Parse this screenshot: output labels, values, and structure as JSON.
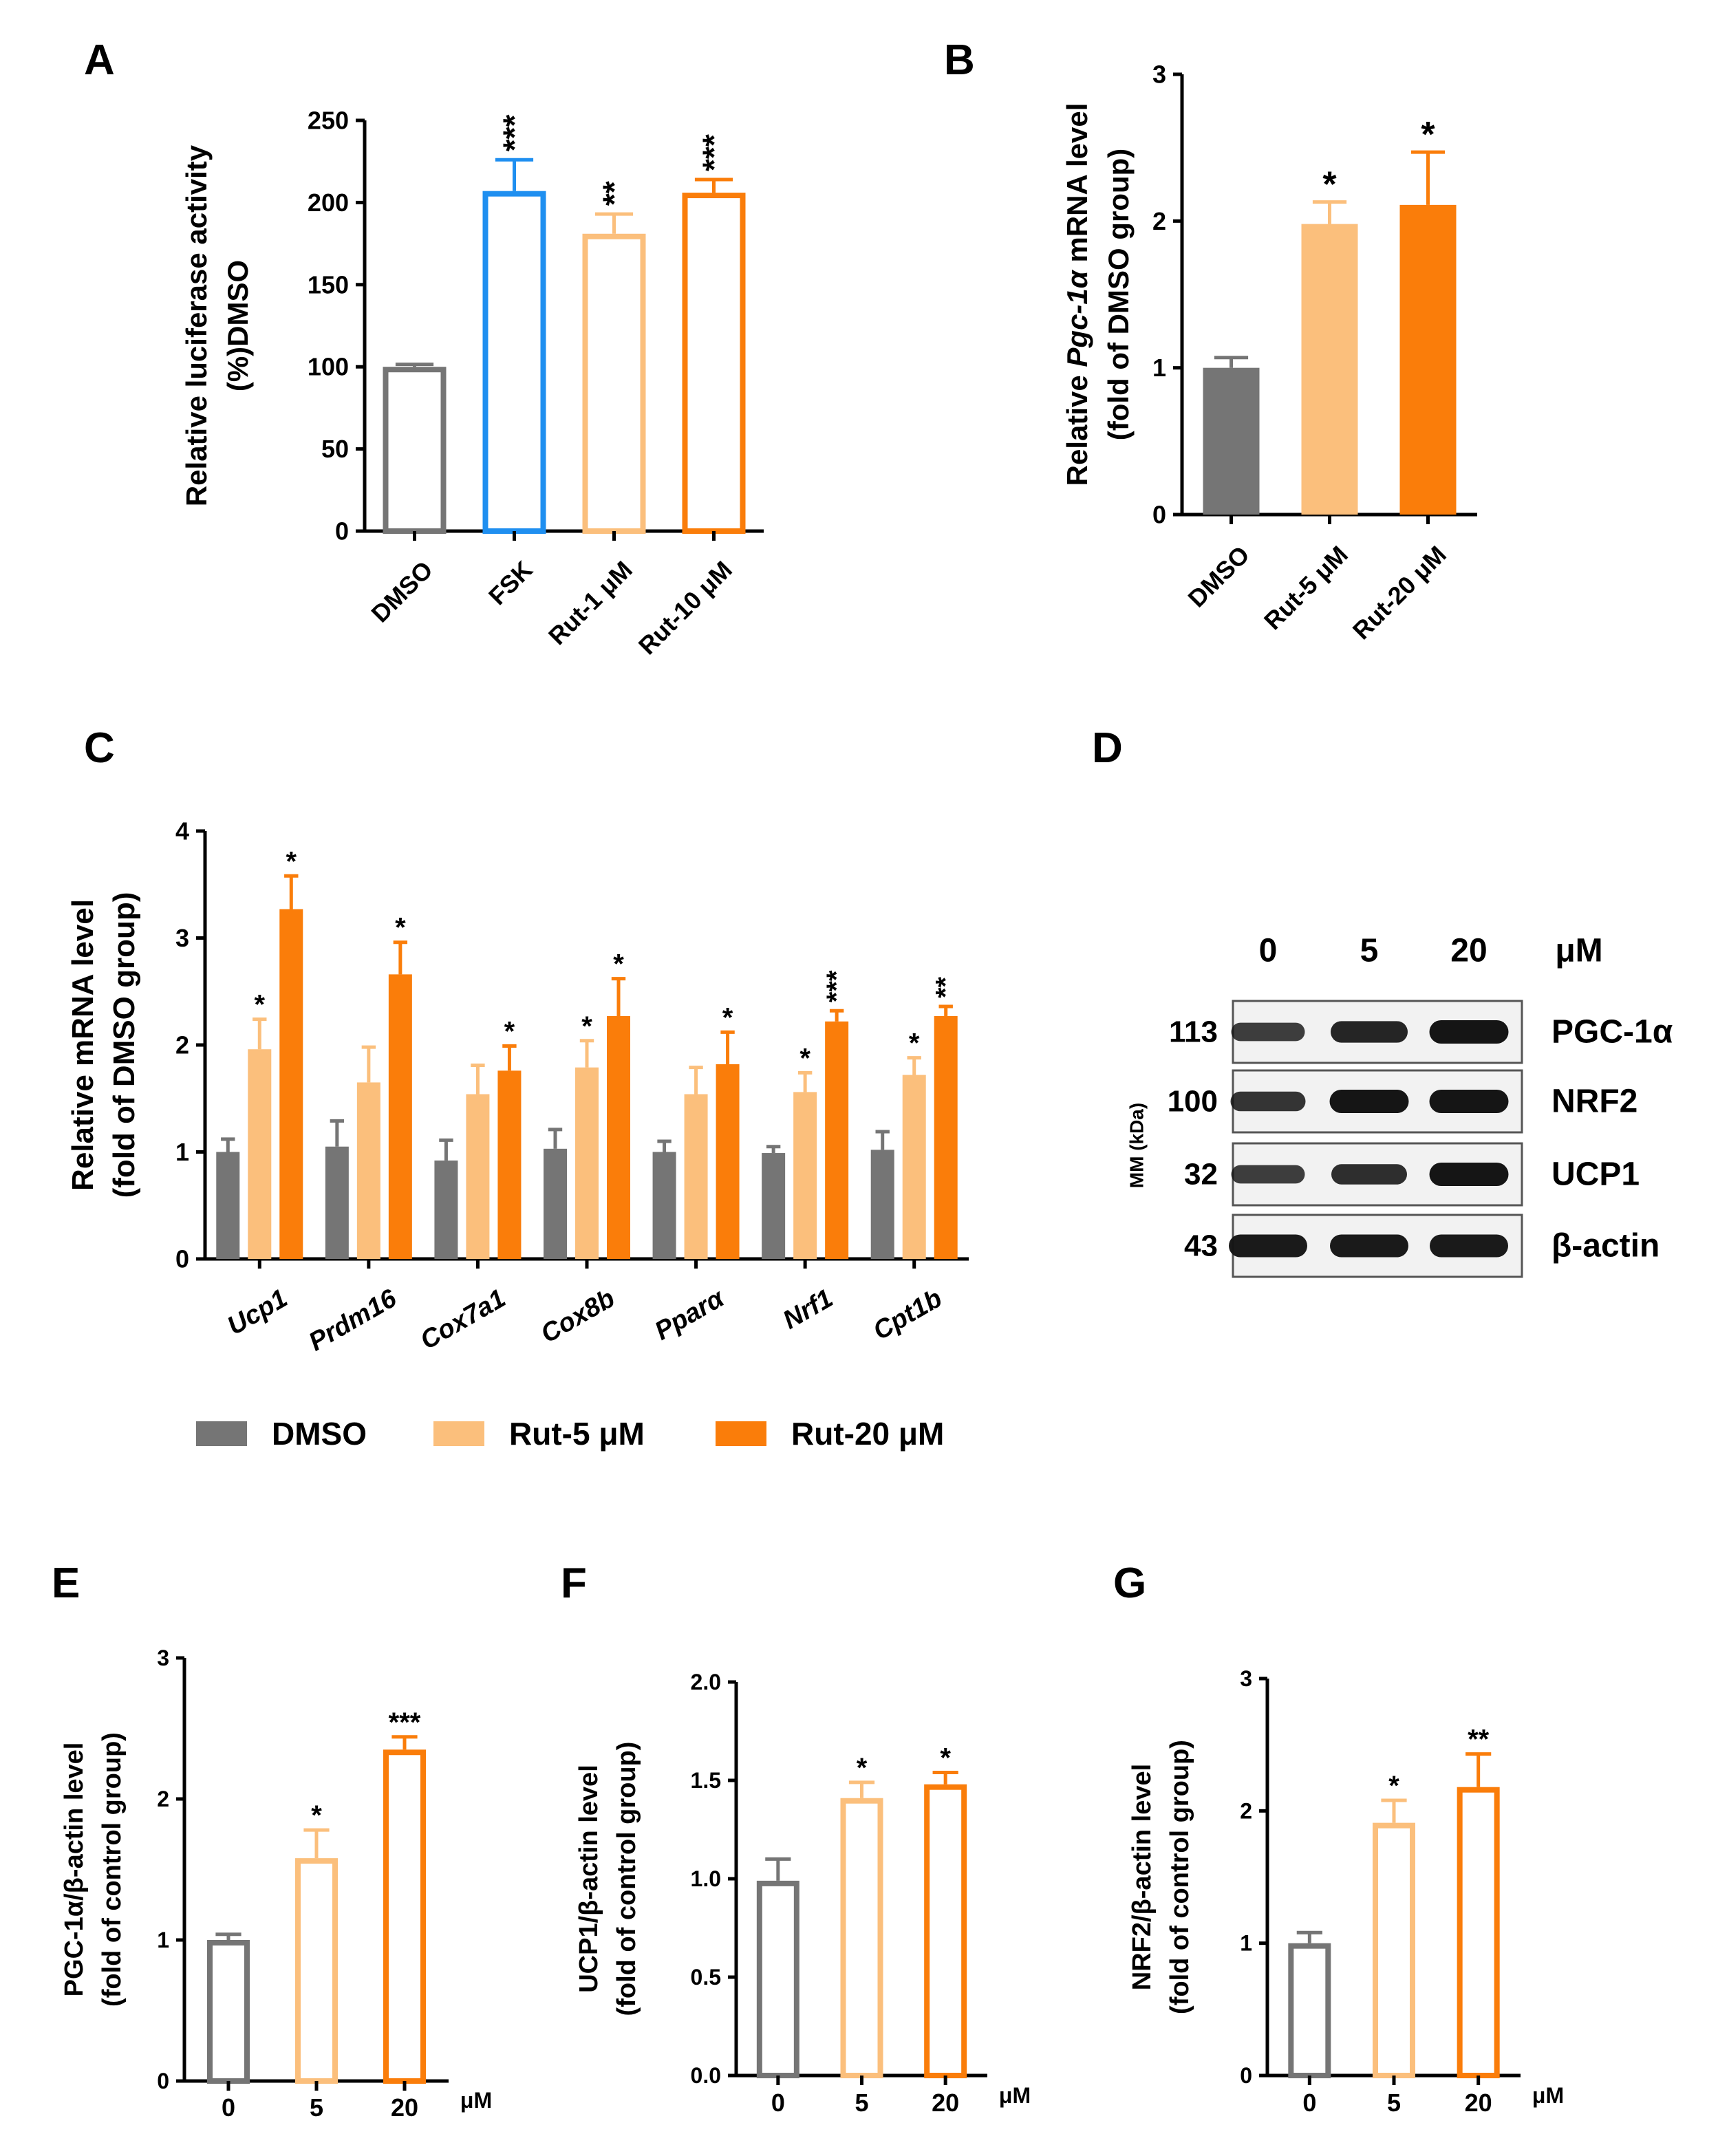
{
  "colors": {
    "dmso": "#757575",
    "fsk": "#1f8ff0",
    "rut_light": "#fbbf7c",
    "rut_dark": "#fa7d0a",
    "axis": "#000000",
    "gel_bg": "#f2f2f2",
    "band": "#151515"
  },
  "chart_data": [
    {
      "panel": "A",
      "type": "bar",
      "style": "outline",
      "categories": [
        "DMSO",
        "FSK",
        "Rut-1 μM",
        "Rut-10 μM"
      ],
      "values": [
        100,
        207,
        181,
        206
      ],
      "errors": [
        1.5,
        19,
        12,
        8
      ],
      "significance": [
        "",
        "***",
        "**",
        "***"
      ],
      "bar_colors": [
        "#757575",
        "#1f8ff0",
        "#fbbf7c",
        "#fa7d0a"
      ],
      "ylabel_lines": [
        "Relative luciferase activity",
        "(%)DMSO"
      ],
      "ylim": [
        0,
        250
      ],
      "yticks": [
        0,
        50,
        100,
        150,
        200,
        250
      ],
      "ytick_labels": [
        "0",
        "50",
        "100",
        "150",
        "200",
        "250"
      ]
    },
    {
      "panel": "B",
      "type": "bar",
      "style": "filled",
      "categories": [
        "DMSO",
        "Rut-5 μM",
        "Rut-20 μM"
      ],
      "values": [
        1.0,
        1.98,
        2.11
      ],
      "errors": [
        0.07,
        0.15,
        0.36
      ],
      "significance": [
        "",
        "*",
        "*"
      ],
      "bar_colors": [
        "#757575",
        "#fbbf7c",
        "#fa7d0a"
      ],
      "ylabel_lines": [
        [
          {
            "t": "Relative "
          },
          {
            "t": "Pgc-1",
            "i": true
          },
          {
            "t": "α",
            "i": true
          },
          {
            "t": " mRNA level"
          }
        ],
        [
          {
            "t": "(fold of DMSO group)"
          }
        ]
      ],
      "ylim": [
        0,
        3
      ],
      "yticks": [
        0,
        1,
        2,
        3
      ],
      "ytick_labels": [
        "0",
        "1",
        "2",
        "3"
      ]
    },
    {
      "panel": "C",
      "type": "bar",
      "style": "filled",
      "categories": [
        "Ucp1",
        "Prdm16",
        "Cox7a1",
        "Cox8b",
        "Pparα",
        "Nrf1",
        "Cpt1b"
      ],
      "series": [
        {
          "name": "DMSO",
          "color": "#757575",
          "values": [
            1.0,
            1.05,
            0.92,
            1.03,
            1.0,
            0.99,
            1.02
          ],
          "errors": [
            0.12,
            0.24,
            0.19,
            0.18,
            0.1,
            0.06,
            0.17
          ],
          "significance": [
            "",
            "",
            "",
            "",
            "",
            "",
            ""
          ]
        },
        {
          "name": "Rut-5 μM",
          "color": "#fbbf7c",
          "values": [
            1.96,
            1.65,
            1.54,
            1.79,
            1.54,
            1.56,
            1.72
          ],
          "errors": [
            0.28,
            0.33,
            0.27,
            0.25,
            0.25,
            0.18,
            0.16
          ],
          "significance": [
            "*",
            "",
            "",
            "*",
            "",
            "*",
            "*"
          ]
        },
        {
          "name": "Rut-20 μM",
          "color": "#fa7d0a",
          "values": [
            3.27,
            2.66,
            1.76,
            2.27,
            1.82,
            2.22,
            2.27
          ],
          "errors": [
            0.31,
            0.3,
            0.23,
            0.35,
            0.3,
            0.1,
            0.09
          ],
          "significance": [
            "*",
            "*",
            "*",
            "*",
            "*",
            "***",
            "**"
          ]
        }
      ],
      "ylabel_lines": [
        "Relative mRNA level",
        "(fold of DMSO group)"
      ],
      "ylim": [
        0,
        4
      ],
      "yticks": [
        0,
        1,
        2,
        3,
        4
      ],
      "ytick_labels": [
        "0",
        "1",
        "2",
        "3",
        "4"
      ],
      "legend": "bottom"
    },
    {
      "panel": "E",
      "type": "bar",
      "style": "outline",
      "categories": [
        "0",
        "5",
        "20"
      ],
      "unit": "μM",
      "values": [
        1.0,
        1.58,
        2.35
      ],
      "errors": [
        0.04,
        0.2,
        0.09
      ],
      "significance": [
        "",
        "*",
        "***"
      ],
      "bar_colors": [
        "#757575",
        "#fbbf7c",
        "#fa7d0a"
      ],
      "ylabel_lines": [
        "PGC-1α/β-actin level",
        "(fold of control group)"
      ],
      "ylim": [
        0,
        3
      ],
      "yticks": [
        0,
        1,
        2,
        3
      ],
      "ytick_labels": [
        "0",
        "1",
        "2",
        "3"
      ]
    },
    {
      "panel": "F",
      "type": "bar",
      "style": "outline",
      "categories": [
        "0",
        "5",
        "20"
      ],
      "unit": "μM",
      "values": [
        0.99,
        1.41,
        1.48
      ],
      "errors": [
        0.11,
        0.08,
        0.06
      ],
      "significance": [
        "",
        "*",
        "*"
      ],
      "bar_colors": [
        "#757575",
        "#fbbf7c",
        "#fa7d0a"
      ],
      "ylabel_lines": [
        "UCP1/β-actin level",
        "(fold of control group)"
      ],
      "ylim": [
        0,
        2
      ],
      "yticks": [
        0,
        0.5,
        1,
        1.5,
        2
      ],
      "ytick_labels": [
        "0.0",
        "0.5",
        "1.0",
        "1.5",
        "2.0"
      ]
    },
    {
      "panel": "G",
      "type": "bar",
      "style": "outline",
      "categories": [
        "0",
        "5",
        "20"
      ],
      "unit": "μM",
      "values": [
        1.0,
        1.91,
        2.18
      ],
      "errors": [
        0.08,
        0.17,
        0.25
      ],
      "significance": [
        "",
        "*",
        "**"
      ],
      "bar_colors": [
        "#757575",
        "#fbbf7c",
        "#fa7d0a"
      ],
      "ylabel_lines": [
        "NRF2/β-actin level",
        "(fold of control group)"
      ],
      "ylim": [
        0,
        3
      ],
      "yticks": [
        0,
        1,
        2,
        3
      ],
      "ytick_labels": [
        "0",
        "1",
        "2",
        "3"
      ]
    }
  ],
  "blot": {
    "panel": "D",
    "doses": [
      "0",
      "5",
      "20"
    ],
    "unit": "μM",
    "mm_label": "MM (kDa)",
    "rows": [
      {
        "mw": "113",
        "protein": "PGC-1α",
        "band_strength": [
          0.6,
          0.85,
          1.0
        ]
      },
      {
        "mw": "100",
        "protein": "NRF2",
        "band_strength": [
          0.7,
          1.0,
          1.0
        ]
      },
      {
        "mw": "32",
        "protein": "UCP1",
        "band_strength": [
          0.6,
          0.75,
          1.0
        ]
      },
      {
        "mw": "43",
        "protein": "β-actin",
        "band_strength": [
          0.95,
          0.95,
          0.95
        ]
      }
    ]
  }
}
